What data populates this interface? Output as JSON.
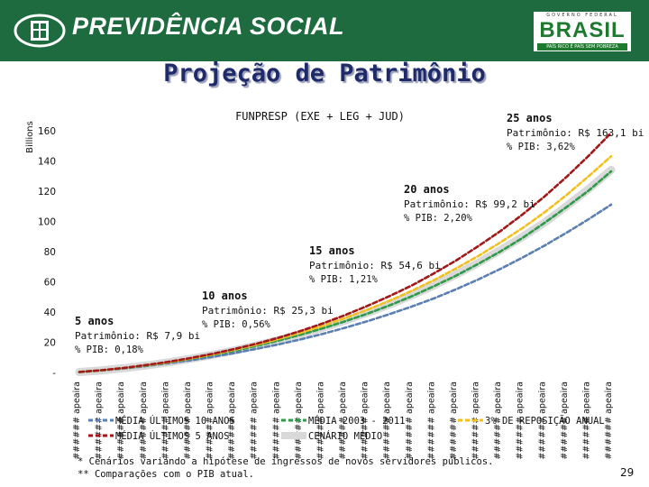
{
  "header": {
    "brand": "PREVIDÊNCIA SOCIAL",
    "gov_top": "GOVERNO FEDERAL",
    "gov_word": "BRASIL",
    "gov_slogan": "PAÍS RICO É PAÍS SEM POBREZA",
    "colors": {
      "bar": "#1d6b3f",
      "title": "#1f2a6b"
    }
  },
  "title": "Projeção de Patrimônio",
  "footnotes": [
    "* Cenários variando a hipótese de ingressos de novos servidores públicos.",
    "** Comparações com o PIB atual."
  ],
  "page_number": "29",
  "chart_data": {
    "type": "line",
    "title": "FUNPRESP (EXE + LEG + JUD)",
    "ylabel": "Billions",
    "ylim": [
      0,
      170
    ],
    "yticks": [
      "-",
      "20",
      "40",
      "60",
      "80",
      "100",
      "120",
      "140",
      "160"
    ],
    "grid": false,
    "legend_position": "bottom",
    "x_label_text": "###### apeaira",
    "x": [
      1,
      2,
      3,
      4,
      5,
      6,
      7,
      8,
      9,
      10,
      11,
      12,
      13,
      14,
      15,
      16,
      17,
      18,
      19,
      20,
      21,
      22,
      23,
      24,
      25
    ],
    "series": [
      {
        "name": "MÉDIA ÚLTIMOS 10 ANOS",
        "color": "#5a7fb0",
        "values": [
          0.3,
          1.3,
          2.6,
          4.2,
          6.0,
          8.0,
          10.3,
          12.8,
          15.6,
          18.6,
          21.9,
          25.6,
          29.6,
          33.9,
          38.6,
          43.6,
          49.0,
          55.0,
          61.5,
          68.5,
          76.0,
          84.0,
          92.5,
          101.5,
          111.0
        ]
      },
      {
        "name": "MÉDIA ÚLTIMOS 5 ANOS",
        "color": "#a01818",
        "values": [
          0.3,
          1.5,
          3.0,
          4.9,
          7.0,
          9.5,
          12.3,
          15.5,
          19.0,
          23.0,
          27.5,
          32.5,
          38.0,
          44.0,
          50.5,
          57.5,
          65.5,
          74.0,
          83.5,
          93.5,
          104.5,
          116.5,
          129.5,
          143.5,
          158.5
        ]
      },
      {
        "name": "MÉDIA 2003 - 2011",
        "color": "#2e9a4a",
        "values": [
          0.3,
          1.4,
          2.8,
          4.5,
          6.5,
          8.9,
          11.5,
          14.4,
          17.6,
          21.1,
          25.0,
          29.2,
          33.9,
          38.9,
          44.4,
          50.4,
          57.0,
          64.0,
          71.8,
          80.0,
          89.0,
          99.0,
          109.5,
          120.5,
          133.0
        ]
      },
      {
        "name": "CENÁRIO MÉDIO",
        "color": "#d9d9d9",
        "values": [
          0.3,
          1.4,
          2.8,
          4.6,
          6.6,
          9.0,
          11.6,
          14.6,
          17.9,
          21.4,
          25.3,
          29.7,
          34.4,
          39.5,
          44.9,
          51.0,
          57.5,
          64.7,
          72.5,
          80.9,
          89.7,
          99.2,
          110.2,
          121.5,
          134.0
        ]
      },
      {
        "name": "3% DE REPOSIÇÃO ANUAL",
        "color": "#f0c020",
        "values": [
          0.3,
          1.4,
          2.9,
          4.7,
          6.7,
          9.2,
          11.9,
          15.0,
          18.4,
          22.2,
          26.3,
          30.9,
          36.0,
          41.5,
          47.5,
          54.0,
          61.0,
          68.8,
          77.0,
          86.0,
          95.5,
          106.0,
          117.5,
          130.0,
          143.0
        ]
      }
    ],
    "annotations": [
      {
        "label": "5 anos",
        "patrimonio": "Patrimônio: R$ 7,9 bi",
        "pib": "% PIB: 0,18%"
      },
      {
        "label": "10 anos",
        "patrimonio": "Patrimônio: R$ 25,3 bi",
        "pib": "% PIB: 0,56%"
      },
      {
        "label": "15 anos",
        "patrimonio": "Patrimônio: R$ 54,6 bi",
        "pib": "% PIB: 1,21%"
      },
      {
        "label": "20 anos",
        "patrimonio": "Patrimônio: R$ 99,2 bi",
        "pib": "% PIB: 2,20%"
      },
      {
        "label": "25 anos",
        "patrimonio": "Patrimônio: R$ 163,1 bi",
        "pib": "% PIB: 3,62%"
      }
    ]
  }
}
